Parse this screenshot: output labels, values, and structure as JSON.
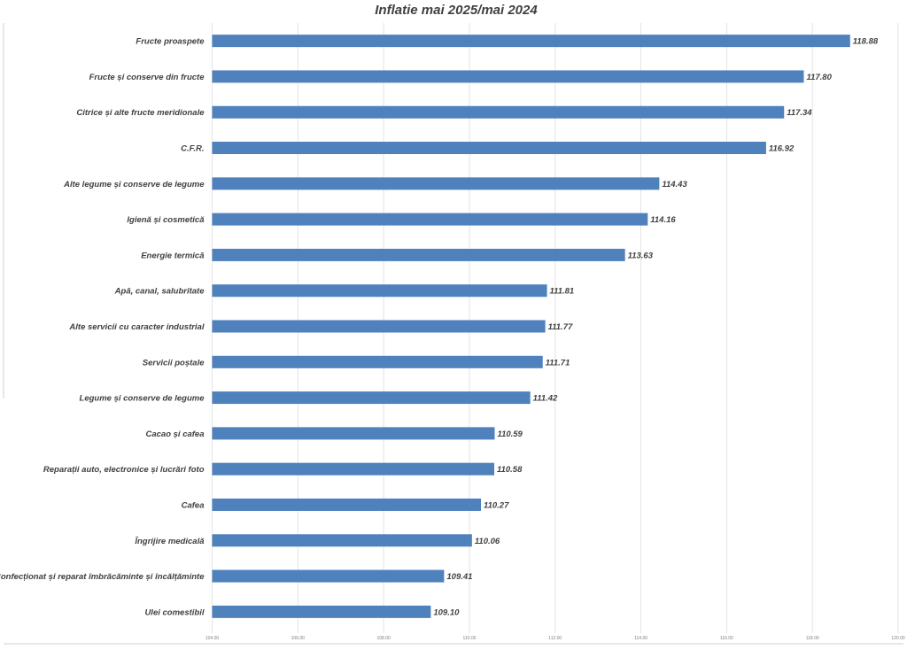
{
  "chart_data": {
    "type": "bar",
    "orientation": "horizontal",
    "title": "Inflatie mai 2025/mai 2024",
    "xlabel": "",
    "ylabel": "",
    "categories": [
      "Fructe proaspete",
      "Fructe și conserve din fructe",
      "Citrice și alte fructe meridionale",
      "C.F.R.",
      "Alte legume și conserve de legume",
      "Igienă și cosmetică",
      "Energie termică",
      "Apă, canal, salubritate",
      "Alte servicii cu caracter industrial",
      "Servicii poștale",
      "Legume și conserve de legume",
      "Cacao și cafea",
      "Reparații auto, electronice și lucrări foto",
      "Cafea",
      "Îngrijire medicală",
      "Confecționat și reparat îmbrăcăminte și încălțăminte",
      "Ulei comestibil"
    ],
    "values": [
      118.88,
      117.8,
      117.34,
      116.92,
      114.43,
      114.16,
      113.63,
      111.81,
      111.77,
      111.71,
      111.42,
      110.59,
      110.58,
      110.27,
      110.06,
      109.41,
      109.1
    ],
    "value_labels": [
      "118.88",
      "117.80",
      "117.34",
      "116.92",
      "114.43",
      "114.16",
      "113.63",
      "111.81",
      "111.77",
      "111.71",
      "111.42",
      "110.59",
      "110.58",
      "110.27",
      "110.06",
      "109.41",
      "109.10"
    ],
    "xlim": [
      104,
      120
    ],
    "x_ticks": [
      104,
      106,
      108,
      110,
      112,
      114,
      116,
      118,
      120
    ],
    "x_tick_labels": [
      "104.00",
      "106.00",
      "108.00",
      "110.00",
      "112.00",
      "114.00",
      "116.00",
      "118.00",
      "120.00"
    ],
    "grid": true,
    "legend": "none",
    "bar_color": "#4f81bd"
  }
}
